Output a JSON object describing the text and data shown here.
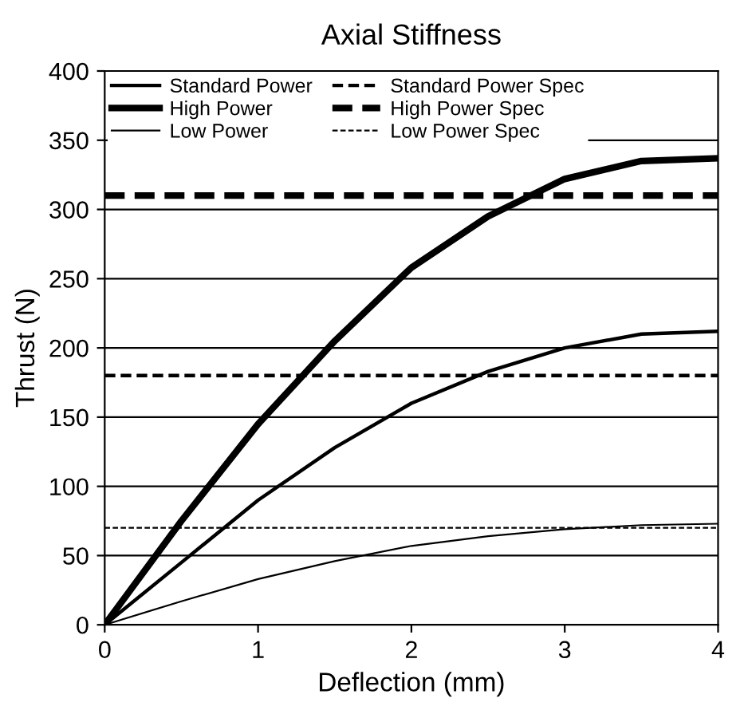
{
  "chart_data": {
    "type": "line",
    "title": "Axial Stiffness",
    "xlabel": "Deflection (mm)",
    "ylabel": "Thrust (N)",
    "xlim": [
      0,
      4
    ],
    "ylim": [
      0,
      400
    ],
    "xticks": [
      0,
      1,
      2,
      3,
      4
    ],
    "yticks": [
      0,
      50,
      100,
      150,
      200,
      250,
      300,
      350,
      400
    ],
    "grid": "y",
    "legend": "top left",
    "line_style": "solid",
    "marker": "none",
    "series": [
      {
        "name": "Standard Power",
        "color": "#000000",
        "x": [
          0,
          0.5,
          1,
          1.5,
          2,
          2.5,
          3,
          3.5,
          4
        ],
        "values": [
          0,
          45,
          90,
          128,
          160,
          183,
          200,
          210,
          212
        ]
      },
      {
        "name": "High Power",
        "color": "#000000",
        "x": [
          0,
          0.5,
          1,
          1.5,
          2,
          2.5,
          3,
          3.5,
          4
        ],
        "values": [
          0,
          75,
          145,
          205,
          258,
          295,
          322,
          335,
          337
        ]
      },
      {
        "name": "Low Power",
        "color": "#000000",
        "x": [
          0,
          0.5,
          1,
          1.5,
          2,
          2.5,
          3,
          3.5,
          4
        ],
        "values": [
          0,
          17,
          33,
          46,
          57,
          64,
          69,
          72,
          73
        ]
      },
      {
        "name": "Standard Power Spec",
        "color": "#000000",
        "line_style": "dashed",
        "x": [
          0,
          4
        ],
        "values": [
          180,
          180
        ]
      },
      {
        "name": "High Power Spec",
        "color": "#000000",
        "line_style": "dashed",
        "x": [
          0,
          4
        ],
        "values": [
          310,
          310
        ]
      },
      {
        "name": "Low Power Spec",
        "color": "#000000",
        "line_style": "dashed",
        "x": [
          0,
          4
        ],
        "values": [
          70,
          70
        ]
      }
    ]
  }
}
